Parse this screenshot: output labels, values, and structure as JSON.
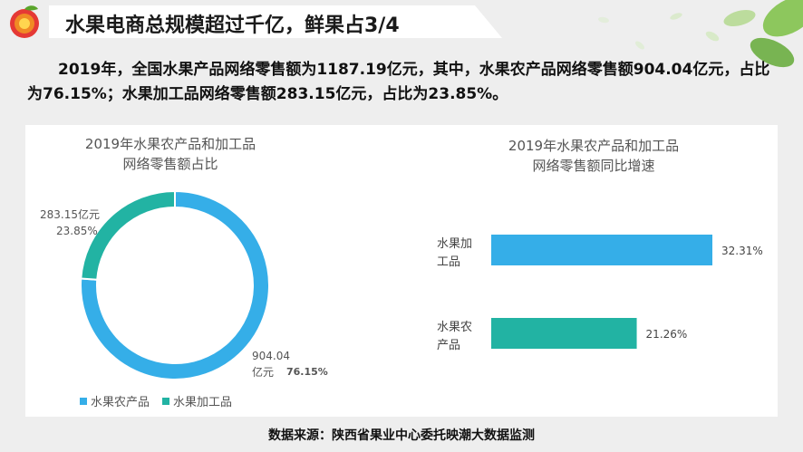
{
  "header": {
    "title": "水果电商总规模超过千亿，鲜果占3/4"
  },
  "summary": {
    "text": "2019年，全国水果产品网络零售额为1187.19亿元，其中，水果农产品网络零售额904.04亿元，占比为76.15%；水果加工品网络零售额283.15亿元，占比为23.85%。"
  },
  "footer": {
    "source": "数据来源：陕西省果业中心委托映潮大数据监测"
  },
  "colors": {
    "blue": "#35aee8",
    "teal": "#22b3a3",
    "orange": "#f08a24",
    "red": "#e53935",
    "title_bar": "#ffffff"
  },
  "chart_data": [
    {
      "type": "pie",
      "title": "2019年水果农产品和加工品\n网络零售额占比",
      "categories": [
        "水果农产品",
        "水果加工品"
      ],
      "values": [
        904.04,
        283.15
      ],
      "percent_labels": [
        "76.15%",
        "23.85%"
      ],
      "value_labels": [
        "904.04\n亿元",
        "283.15亿元"
      ],
      "legend_position": "bottom-left",
      "donut": true
    },
    {
      "type": "bar",
      "orientation": "horizontal",
      "title": "2019年水果农产品和加工品\n网络零售额同比增速",
      "categories": [
        "水果加\n工品",
        "水果农\n产品"
      ],
      "values": [
        32.31,
        21.26
      ],
      "value_labels": [
        "32.31%",
        "21.26%"
      ],
      "colors": [
        "#35aee8",
        "#22b3a3"
      ],
      "xlabel": "",
      "ylabel": "",
      "grid": false
    }
  ]
}
